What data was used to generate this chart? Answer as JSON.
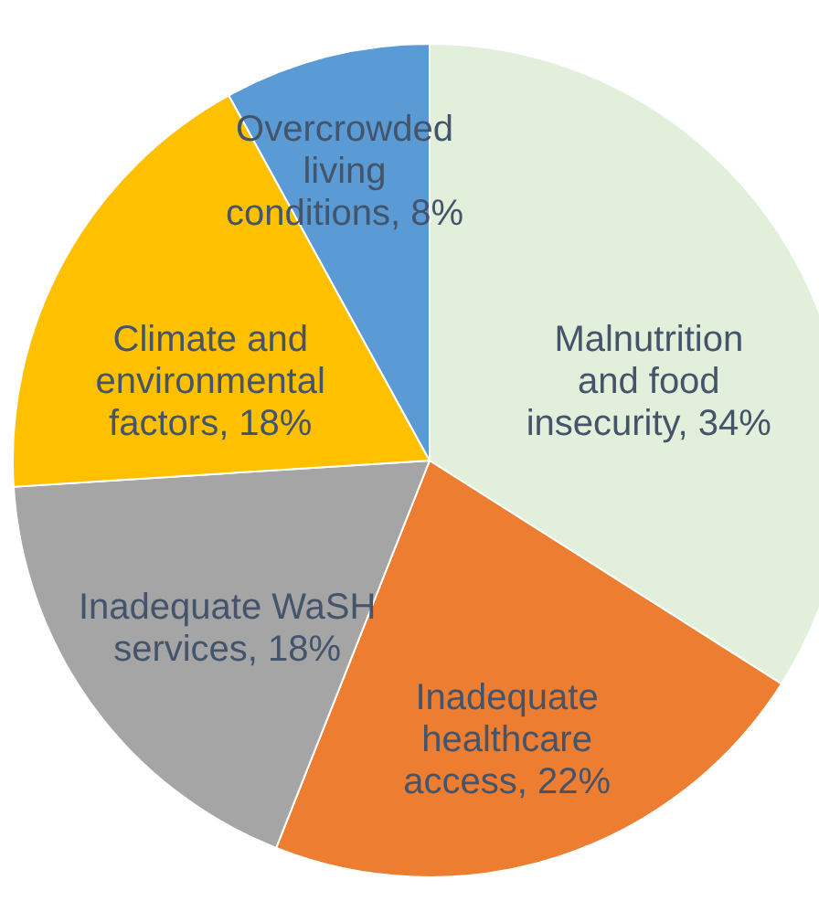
{
  "chart_data": {
    "type": "pie",
    "categories": [
      "Malnutrition and food insecurity",
      "Inadequate healthcare access",
      "Inadequate WaSH services",
      "Climate and environmental factors",
      "Overcrowded living conditions"
    ],
    "values": [
      34,
      22,
      18,
      18,
      8
    ],
    "value_labels": [
      "34%",
      "22%",
      "18%",
      "18%",
      "8%"
    ],
    "colors": [
      "#e2efda",
      "#ed7d31",
      "#a5a5a5",
      "#ffc000",
      "#5b9bd5"
    ]
  }
}
